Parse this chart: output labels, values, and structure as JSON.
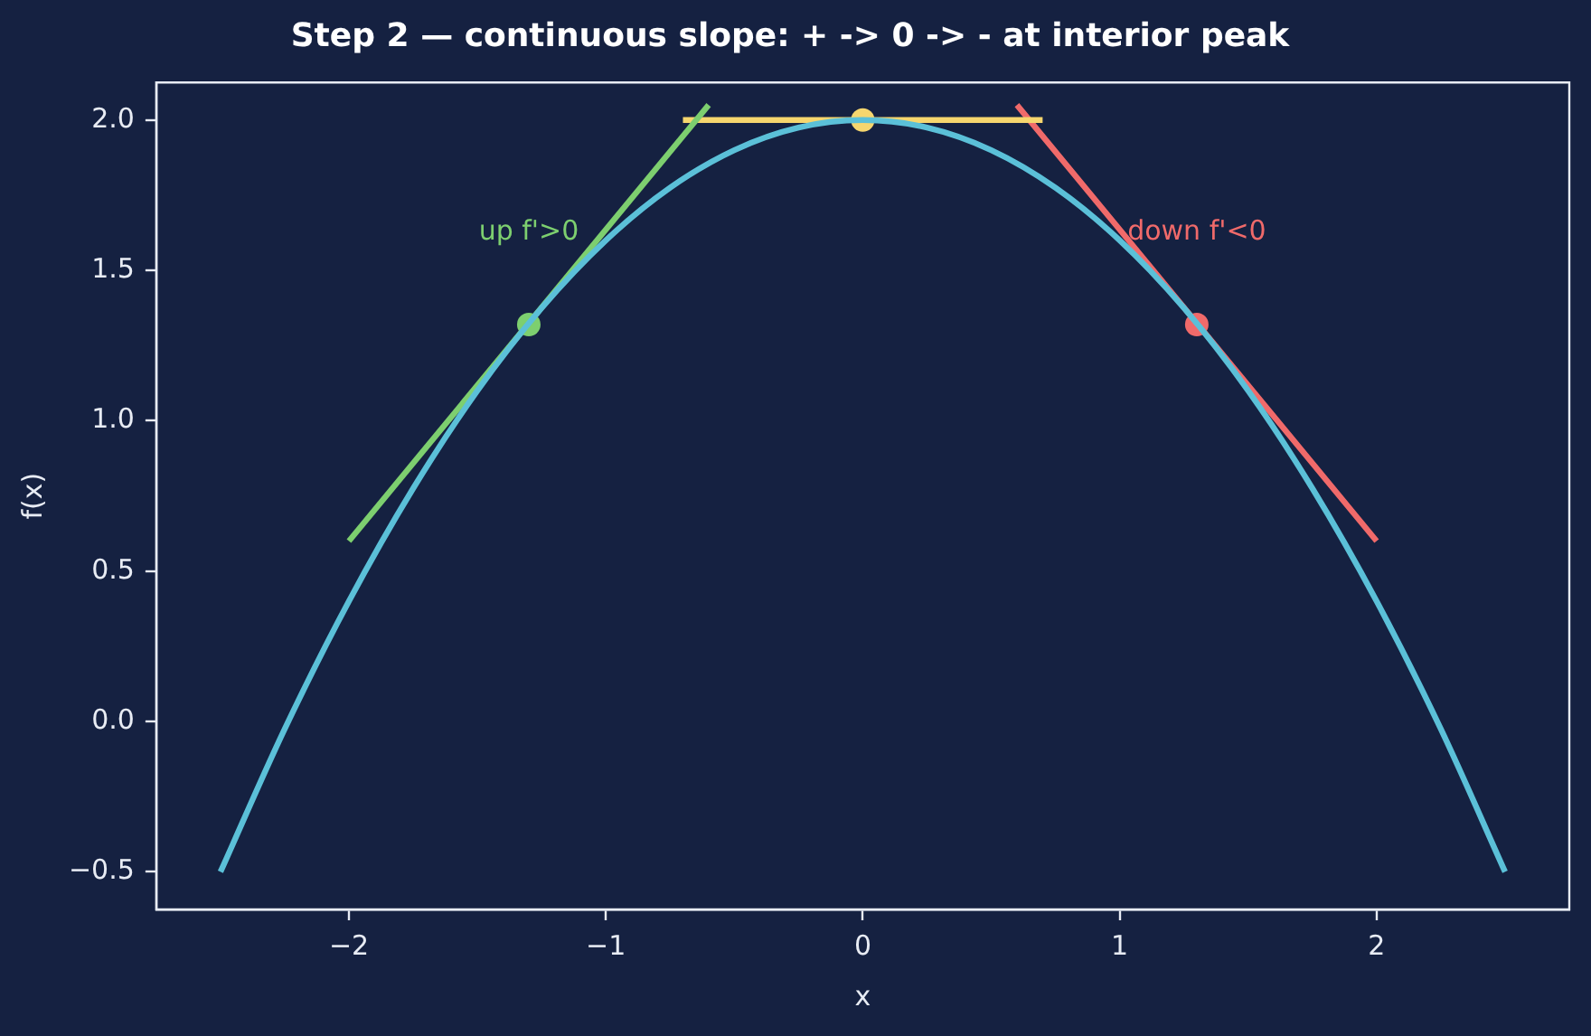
{
  "chart_data": {
    "type": "line",
    "title": "Step 2 — continuous slope: + -> 0 -> - at interior peak",
    "xlabel": "x",
    "ylabel": "f(x)",
    "xlim": [
      -2.75,
      2.75
    ],
    "ylim": [
      -0.625,
      2.125
    ],
    "xticks": [
      {
        "value": -2,
        "label": "−2"
      },
      {
        "value": -1,
        "label": "−1"
      },
      0,
      1,
      2
    ],
    "yticks": [
      {
        "value": -0.5,
        "label": "−0.5"
      },
      {
        "value": 0,
        "label": "0.0"
      },
      {
        "value": 0.5,
        "label": "0.5"
      },
      {
        "value": 1,
        "label": "1.0"
      },
      {
        "value": 1.5,
        "label": "1.5"
      },
      {
        "value": 2,
        "label": "2.0"
      }
    ],
    "grid": false,
    "legend": false,
    "series": [
      {
        "color": "#5bc0d8",
        "marker": "none",
        "x": [
          -2.5,
          -2.25,
          -2,
          -1.75,
          -1.5,
          -1.25,
          -1,
          -0.75,
          -0.5,
          -0.25,
          0,
          0.25,
          0.5,
          0.75,
          1,
          1.25,
          1.5,
          1.75,
          2,
          2.25,
          2.5
        ],
        "values": [
          -0.5,
          -0.025,
          0.4,
          0.775,
          1.1,
          1.375,
          1.6,
          1.775,
          1.9,
          1.975,
          2,
          1.975,
          1.9,
          1.775,
          1.6,
          1.375,
          1.1,
          0.775,
          0.4,
          -0.025,
          -0.5
        ]
      },
      {
        "color": "#7dcf6f",
        "marker": "none",
        "x": [
          -2,
          -0.6
        ],
        "values": [
          0.6,
          2.05
        ]
      },
      {
        "color": "#f6d66e",
        "marker": "none",
        "x": [
          -0.7,
          0.7
        ],
        "values": [
          2,
          2
        ]
      },
      {
        "color": "#f06a6a",
        "marker": "none",
        "x": [
          0.6,
          2
        ],
        "values": [
          2.05,
          0.6
        ]
      },
      {
        "type": "scatter",
        "color": "#7dcf6f",
        "marker": "circle",
        "x": [
          -1.3
        ],
        "values": [
          1.32
        ]
      },
      {
        "type": "scatter",
        "color": "#f06a6a",
        "marker": "circle",
        "x": [
          1.3
        ],
        "values": [
          1.32
        ]
      },
      {
        "type": "scatter",
        "color": "#f6d66e",
        "marker": "circle",
        "x": [
          0
        ],
        "values": [
          2
        ]
      }
    ],
    "annotations": [
      "up f'>0",
      "down f'<0"
    ]
  }
}
